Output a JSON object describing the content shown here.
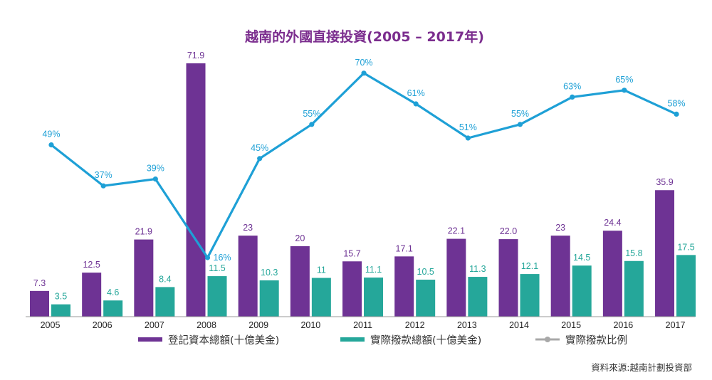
{
  "colors": {
    "title": "#7b2d8e",
    "registered": "#6e3394",
    "disbursed": "#25a79a",
    "ratio_line": "#1ea0d6",
    "legend_ratio_marker": "#a8a8a8",
    "axis": "#999999"
  },
  "chart_data": {
    "type": "bar",
    "title": "越南的外國直接投資(2005 – 2017年)",
    "categories": [
      "2005",
      "2006",
      "2007",
      "2008",
      "2009",
      "2010",
      "2011",
      "2012",
      "2013",
      "2014",
      "2015",
      "2016",
      "2017"
    ],
    "series": [
      {
        "name": "登記資本總額(十億美金)",
        "type": "bar",
        "values": [
          7.3,
          12.5,
          21.9,
          71.9,
          23,
          20,
          15.7,
          17.1,
          22.1,
          22.0,
          23,
          24.4,
          35.9
        ],
        "labels": [
          "7.3",
          "12.5",
          "21.9",
          "71.9",
          "23",
          "20",
          "15.7",
          "17.1",
          "22.1",
          "22.0",
          "23",
          "24.4",
          "35.9"
        ]
      },
      {
        "name": "實際撥款總額(十億美金)",
        "type": "bar",
        "values": [
          3.5,
          4.6,
          8.4,
          11.5,
          10.3,
          11,
          11.1,
          10.5,
          11.3,
          12.1,
          14.5,
          15.8,
          17.5
        ],
        "labels": [
          "3.5",
          "4.6",
          "8.4",
          "11.5",
          "10.3",
          "11",
          "11.1",
          "10.5",
          "11.3",
          "12.1",
          "14.5",
          "15.8",
          "17.5"
        ]
      },
      {
        "name": "實際撥款比例",
        "type": "line",
        "values": [
          49,
          37,
          39,
          16,
          45,
          55,
          70,
          61,
          51,
          55,
          63,
          65,
          58
        ],
        "labels": [
          "49%",
          "37%",
          "39%",
          "16%",
          "45%",
          "55%",
          "70%",
          "61%",
          "51%",
          "55%",
          "63%",
          "65%",
          "58%"
        ]
      }
    ],
    "legend_position": "bottom",
    "grid": false,
    "source": "資料來源:越南計劃投資部"
  }
}
